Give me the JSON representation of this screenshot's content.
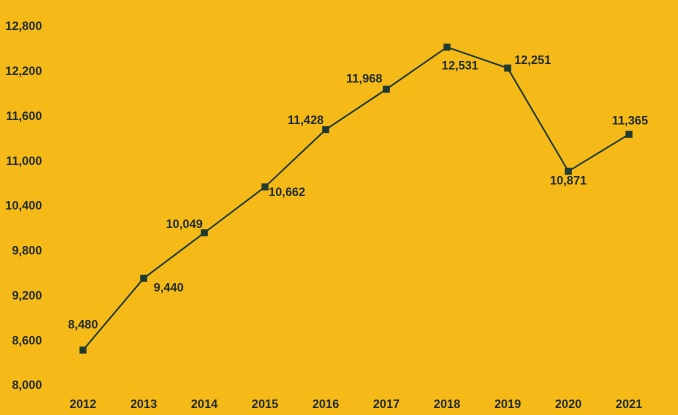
{
  "chart_data": {
    "type": "line",
    "categories": [
      "2012",
      "2013",
      "2014",
      "2015",
      "2016",
      "2017",
      "2018",
      "2019",
      "2020",
      "2021"
    ],
    "values": [
      8480,
      9440,
      10049,
      10662,
      11428,
      11968,
      12531,
      12251,
      10871,
      11365
    ],
    "value_labels": [
      "8,480",
      "9,440",
      "10,049",
      "10,662",
      "11,428",
      "11,968",
      "12,531",
      "12,251",
      "10,871",
      "11,365"
    ],
    "color": "#1e3a32",
    "ylim": [
      8000,
      12800
    ],
    "yticks": [
      {
        "value": 8000,
        "label": "8,000"
      },
      {
        "value": 8600,
        "label": "8,600"
      },
      {
        "value": 9200,
        "label": "9,200"
      },
      {
        "value": 9800,
        "label": "9,800"
      },
      {
        "value": 10400,
        "label": "10,400"
      },
      {
        "value": 11000,
        "label": "11,000"
      },
      {
        "value": 11600,
        "label": "11,600"
      },
      {
        "value": 12200,
        "label": "12,200"
      },
      {
        "value": 12800,
        "label": "12,800"
      }
    ],
    "grid": false
  }
}
